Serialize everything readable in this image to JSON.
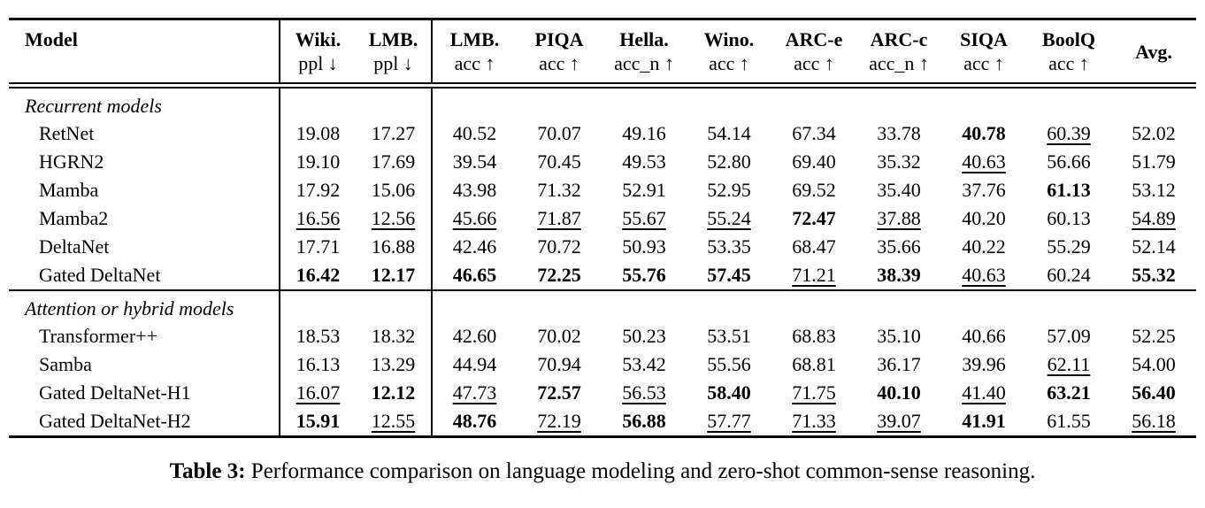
{
  "colors": {
    "text": "#000000",
    "background": "#ffffff",
    "rule": "#000000"
  },
  "table": {
    "header": [
      {
        "top": "Model",
        "sub": ""
      },
      {
        "top": "Wiki.",
        "sub": "ppl ↓"
      },
      {
        "top": "LMB.",
        "sub": "ppl ↓"
      },
      {
        "top": "LMB.",
        "sub": "acc ↑"
      },
      {
        "top": "PIQA",
        "sub": "acc ↑"
      },
      {
        "top": "Hella.",
        "sub": "acc_n ↑"
      },
      {
        "top": "Wino.",
        "sub": "acc ↑"
      },
      {
        "top": "ARC-e",
        "sub": "acc ↑"
      },
      {
        "top": "ARC-c",
        "sub": "acc_n ↑"
      },
      {
        "top": "SIQA",
        "sub": "acc ↑"
      },
      {
        "top": "BoolQ",
        "sub": "acc ↑"
      },
      {
        "top": "Avg.",
        "sub": ""
      }
    ],
    "sections": [
      {
        "label": "Recurrent models",
        "rows": [
          {
            "model": "RetNet",
            "values": [
              "19.08",
              "17.27",
              "40.52",
              "70.07",
              "49.16",
              "54.14",
              "67.34",
              "33.78",
              "40.78",
              "60.39",
              "52.02"
            ],
            "styles": [
              "",
              "",
              "",
              "",
              "",
              "",
              "",
              "",
              "b",
              "u",
              ""
            ]
          },
          {
            "model": "HGRN2",
            "values": [
              "19.10",
              "17.69",
              "39.54",
              "70.45",
              "49.53",
              "52.80",
              "69.40",
              "35.32",
              "40.63",
              "56.66",
              "51.79"
            ],
            "styles": [
              "",
              "",
              "",
              "",
              "",
              "",
              "",
              "",
              "u",
              "",
              ""
            ]
          },
          {
            "model": "Mamba",
            "values": [
              "17.92",
              "15.06",
              "43.98",
              "71.32",
              "52.91",
              "52.95",
              "69.52",
              "35.40",
              "37.76",
              "61.13",
              "53.12"
            ],
            "styles": [
              "",
              "",
              "",
              "",
              "",
              "",
              "",
              "",
              "",
              "b",
              ""
            ]
          },
          {
            "model": "Mamba2",
            "values": [
              "16.56",
              "12.56",
              "45.66",
              "71.87",
              "55.67",
              "55.24",
              "72.47",
              "37.88",
              "40.20",
              "60.13",
              "54.89"
            ],
            "styles": [
              "u",
              "u",
              "u",
              "u",
              "u",
              "u",
              "b",
              "u",
              "",
              "",
              "u"
            ]
          },
          {
            "model": "DeltaNet",
            "values": [
              "17.71",
              "16.88",
              "42.46",
              "70.72",
              "50.93",
              "53.35",
              "68.47",
              "35.66",
              "40.22",
              "55.29",
              "52.14"
            ],
            "styles": [
              "",
              "",
              "",
              "",
              "",
              "",
              "",
              "",
              "",
              "",
              ""
            ]
          },
          {
            "model": "Gated DeltaNet",
            "values": [
              "16.42",
              "12.17",
              "46.65",
              "72.25",
              "55.76",
              "57.45",
              "71.21",
              "38.39",
              "40.63",
              "60.24",
              "55.32"
            ],
            "styles": [
              "b",
              "b",
              "b",
              "b",
              "b",
              "b",
              "u",
              "b",
              "u",
              "",
              "b"
            ]
          }
        ]
      },
      {
        "label": "Attention or hybrid models",
        "rows": [
          {
            "model": "Transformer++",
            "values": [
              "18.53",
              "18.32",
              "42.60",
              "70.02",
              "50.23",
              "53.51",
              "68.83",
              "35.10",
              "40.66",
              "57.09",
              "52.25"
            ],
            "styles": [
              "",
              "",
              "",
              "",
              "",
              "",
              "",
              "",
              "",
              "",
              ""
            ]
          },
          {
            "model": "Samba",
            "values": [
              "16.13",
              "13.29",
              "44.94",
              "70.94",
              "53.42",
              "55.56",
              "68.81",
              "36.17",
              "39.96",
              "62.11",
              "54.00"
            ],
            "styles": [
              "",
              "",
              "",
              "",
              "",
              "",
              "",
              "",
              "",
              "u",
              ""
            ]
          },
          {
            "model": "Gated DeltaNet-H1",
            "values": [
              "16.07",
              "12.12",
              "47.73",
              "72.57",
              "56.53",
              "58.40",
              "71.75",
              "40.10",
              "41.40",
              "63.21",
              "56.40"
            ],
            "styles": [
              "u",
              "b",
              "u",
              "b",
              "u",
              "b",
              "u",
              "b",
              "u",
              "b",
              "b"
            ]
          },
          {
            "model": "Gated DeltaNet-H2",
            "values": [
              "15.91",
              "12.55",
              "48.76",
              "72.19",
              "56.88",
              "57.77",
              "71.33",
              "39.07",
              "41.91",
              "61.55",
              "56.18"
            ],
            "styles": [
              "b",
              "u",
              "b",
              "u",
              "b",
              "u",
              "u",
              "u",
              "b",
              "",
              "u"
            ]
          }
        ]
      }
    ]
  },
  "caption": {
    "label": "Table 3:",
    "text": "Performance comparison on language modeling and zero-shot common-sense reasoning."
  }
}
